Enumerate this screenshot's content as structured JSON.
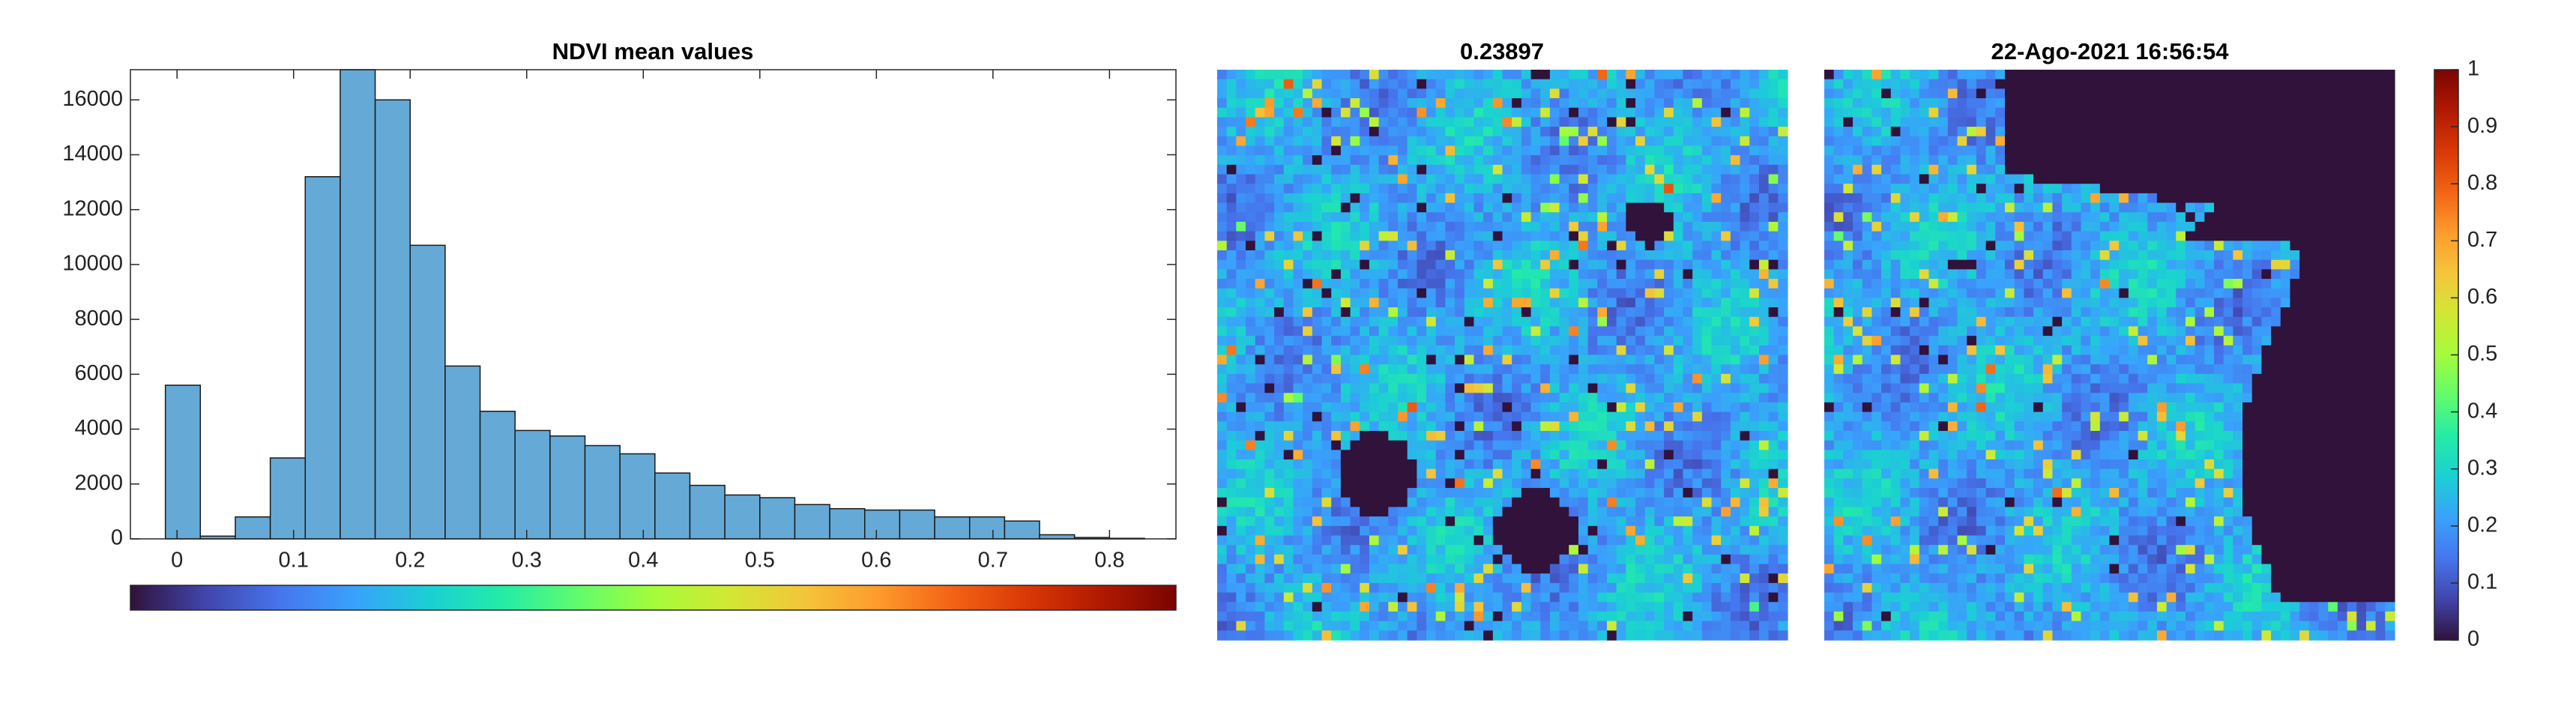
{
  "chart_data": {
    "type": "histogram",
    "title": "NDVI mean values",
    "bins": [
      -0.01,
      0.02,
      0.05,
      0.08,
      0.11,
      0.14,
      0.17,
      0.2,
      0.23,
      0.26,
      0.29,
      0.32,
      0.35,
      0.38,
      0.41,
      0.44,
      0.47,
      0.5,
      0.53,
      0.56,
      0.59,
      0.62,
      0.65,
      0.68,
      0.71,
      0.74,
      0.77,
      0.8,
      0.83
    ],
    "values": [
      5600,
      100,
      800,
      2950,
      13200,
      17100,
      16000,
      10700,
      6300,
      4650,
      3950,
      3750,
      3400,
      3100,
      2400,
      1950,
      1600,
      1500,
      1250,
      1100,
      1050,
      1050,
      800,
      800,
      650,
      150,
      50,
      20
    ],
    "color": "#65aad7",
    "xlim": [
      -0.04,
      0.857
    ],
    "xticks": [
      0,
      0.1,
      0.2,
      0.3,
      0.4,
      0.5,
      0.6,
      0.7,
      0.8
    ],
    "ylim": [
      0,
      17100
    ],
    "yticks": [
      0,
      2000,
      4000,
      6000,
      8000,
      10000,
      12000,
      14000,
      16000
    ],
    "image_titles": [
      "0.23897",
      "22-Ago-2021 16:56:54"
    ],
    "colormap": [
      "#30123b",
      "#4145ab",
      "#4675ed",
      "#39a2fc",
      "#1bcfd4",
      "#24eca6",
      "#61fc6c",
      "#a4fc3b",
      "#d1e834",
      "#f3c63a",
      "#fe9b2d",
      "#f36315",
      "#d93806",
      "#b11901",
      "#7a0402"
    ],
    "clim": [
      0,
      1
    ],
    "colorbar_ticks": [
      0,
      0.1,
      0.2,
      0.3,
      0.4,
      0.5,
      0.6,
      0.7,
      0.8,
      0.9,
      1
    ]
  }
}
